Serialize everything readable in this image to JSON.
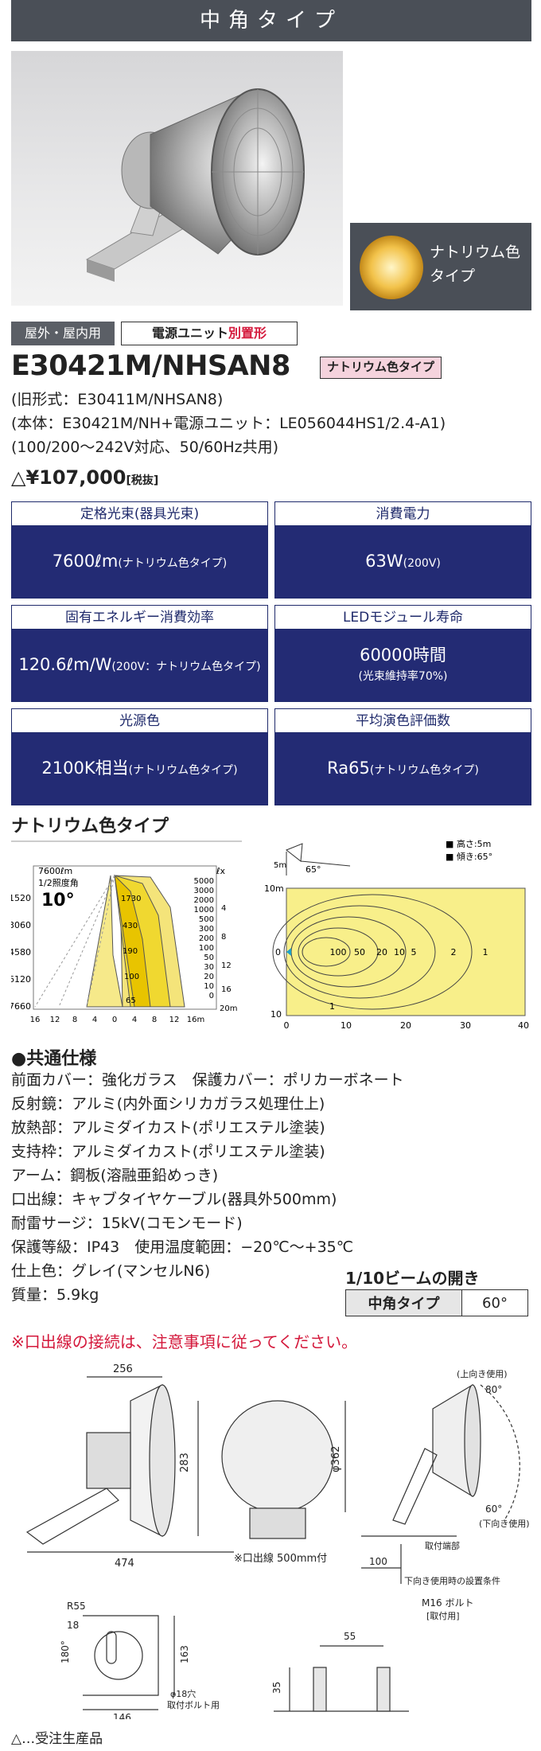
{
  "header": {
    "title": "中角タイプ"
  },
  "inset": {
    "label_line1": "ナトリウム色",
    "label_line2": "タイプ"
  },
  "tags": {
    "location": "屋外・屋内用",
    "power_unit_prefix": "電源ユニット",
    "power_unit_suffix": "別置形"
  },
  "product": {
    "model": "E30421M/NHSAN8",
    "color_type": "ナトリウム色タイプ",
    "old_model": "(旧形式：E30411M/NHSAN8)",
    "composition": "(本体：E30421M/NH+電源ユニット：LE056044HS1/2.4-A1)",
    "voltage": "(100/200～242V対応、50/60Hz共用)",
    "price": "△¥107,000",
    "price_tax": "[税抜]"
  },
  "spec_boxes": [
    {
      "header": "定格光束(器具光束)",
      "main": "7600ℓm",
      "note": "(ナトリウム色タイプ)"
    },
    {
      "header": "消費電力",
      "main": "63W",
      "note": "(200V)"
    },
    {
      "header": "固有エネルギー消費効率",
      "main": "120.6ℓm/W",
      "note": "(200V：ナトリウム色タイプ)"
    },
    {
      "header": "LEDモジュール寿命",
      "main": "60000時間",
      "note": "(光束維持率70%)"
    },
    {
      "header": "光源色",
      "main": "2100K相当",
      "note": "(ナトリウム色タイプ)"
    },
    {
      "header": "平均演色評価数",
      "main": "Ra65",
      "note": "(ナトリウム色タイプ)"
    }
  ],
  "distribution": {
    "section_title": "ナトリウム色タイプ",
    "left_chart": {
      "top_left": "7600ℓm",
      "half_angle_label": "1/2照度角",
      "half_angle": "10°",
      "unit": "ℓx",
      "left_ticks": [
        "1520",
        "3060",
        "4580",
        "6120",
        "7660"
      ],
      "right_ticks": [
        "5000",
        "3000",
        "2000",
        "1000",
        "500",
        "300",
        "200",
        "100",
        "50",
        "30",
        "20",
        "10",
        "0"
      ],
      "right_dist": [
        "4",
        "8",
        "12",
        "16",
        "20m"
      ],
      "curve_labels": [
        "1730",
        "430",
        "190",
        "100",
        "65"
      ],
      "bottom_ticks": [
        "16",
        "12",
        "8",
        "4",
        "0",
        "4",
        "8",
        "12",
        "16m"
      ]
    },
    "right_chart": {
      "legend_height": "■ 高さ:5m",
      "legend_tilt": "■ 傾き:65°",
      "tilt_label": "65°",
      "height_label": "5m",
      "y_ticks": [
        "10m",
        "0",
        "10"
      ],
      "x_ticks": [
        "0",
        "10",
        "20",
        "30",
        "40"
      ],
      "contour_labels": [
        "100",
        "50",
        "20",
        "10",
        "5",
        "2",
        "1"
      ],
      "bottom_label": "1"
    }
  },
  "common_specs": {
    "title": "●共通仕様",
    "lines": [
      "前面カバー：強化ガラス　保護カバー：ポリカーボネート",
      "反射鏡：アルミ(内外面シリカガラス処理仕上)",
      "放熱部：アルミダイカスト(ポリエステル塗装)",
      "支持枠：アルミダイカスト(ポリエステル塗装)",
      "アーム：鋼板(溶融亜鉛めっき)",
      "口出線：キャブタイヤケーブル(器具外500mm)",
      "耐雷サージ：15kV(コモンモード)",
      "保護等級：IP43　使用温度範囲：−20℃～+35℃",
      "仕上色：グレイ(マンセルN6)",
      "質量：5.9kg"
    ]
  },
  "beam": {
    "title": "1/10ビームの開き",
    "type": "中角タイプ",
    "angle": "60°"
  },
  "warning": "※口出線の接続は、注意事項に従ってください。",
  "drawing": {
    "dim_256": "256",
    "dim_283": "283",
    "dim_474": "474",
    "dim_362": "φ362",
    "lead_note": "※口出線 500mm付",
    "up_use": "(上向き使用)",
    "angle_80": "80°",
    "angle_60": "60°",
    "down_use": "(下向き使用)",
    "mount_end": "取付端部",
    "dim_100": "100",
    "install_cond": "下向き使用時の設置条件",
    "r55": "R55",
    "dim_18": "18",
    "angle_180": "180°",
    "dim_163": "163",
    "hole": "φ18穴",
    "hole_note": "取付ボルト用",
    "dim_146": "146",
    "bolt": "M16 ボルト",
    "bolt_note": "[取付用]",
    "dim_55": "55",
    "dim_35": "35"
  },
  "footnote": "△…受注生産品"
}
